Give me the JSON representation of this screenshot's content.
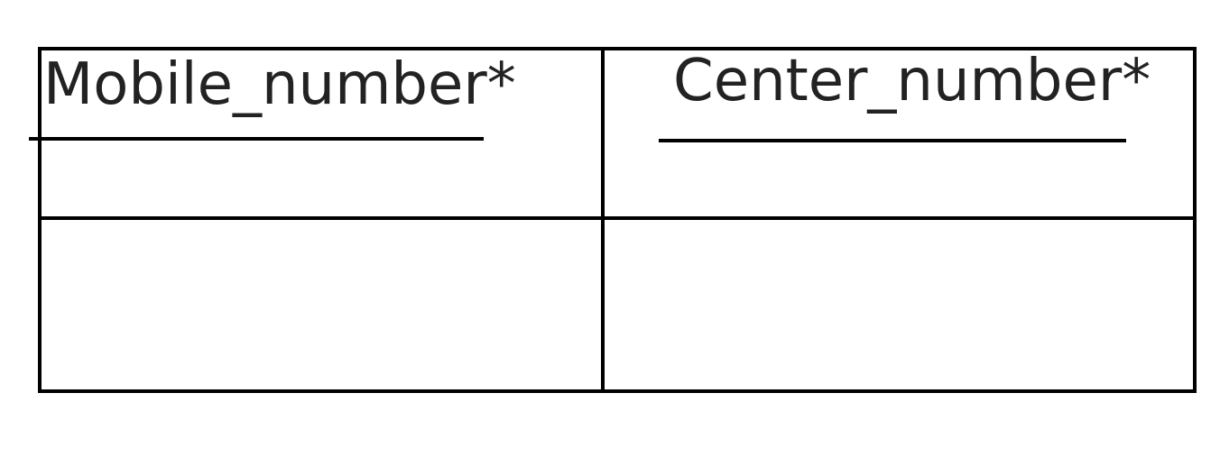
{
  "table": {
    "attributes": [
      {
        "name": "Mobile_number*"
      },
      {
        "name": "Center_number*"
      }
    ]
  }
}
